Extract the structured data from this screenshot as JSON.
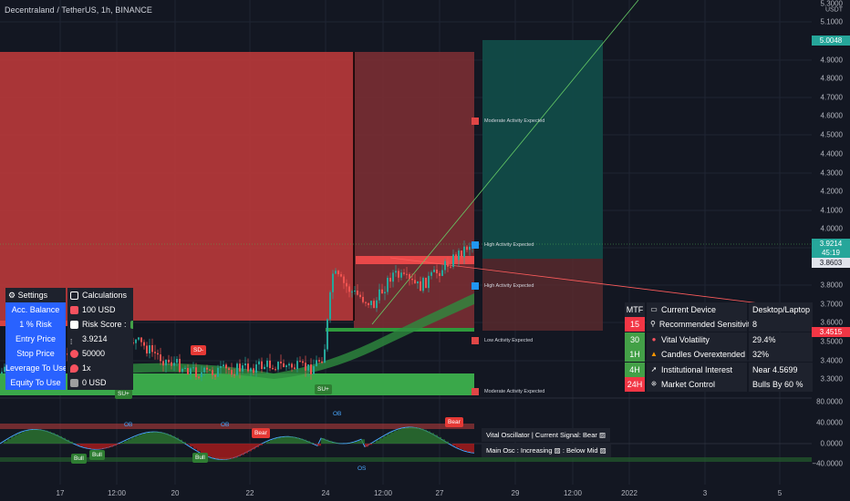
{
  "header": {
    "symbol": "Decentraland / TetherUS, 1h, BINANCE"
  },
  "price_scale": {
    "currency": "USDT",
    "ticks": [
      "5.1000",
      "4.9000",
      "4.8000",
      "4.7000",
      "4.6000",
      "4.5000",
      "4.4000",
      "4.3000",
      "4.2000",
      "4.1000",
      "4.0000",
      "3.9000",
      "3.8000",
      "3.7000",
      "3.6000",
      "3.5000",
      "3.4000",
      "3.3000",
      "3.2000",
      "3.1000"
    ],
    "top_tick": "5.3000",
    "badge_target": "5.0048",
    "badge_last": "3.9214",
    "badge_countdown": "45:19",
    "badge_line": "3.8603",
    "badge_stop": "3.4515",
    "osc_ticks": [
      "80.0000",
      "40.0000",
      "0.0000",
      "−40.0000"
    ]
  },
  "time_axis": [
    "17",
    "12:00",
    "20",
    "22",
    "24",
    "12:00",
    "27",
    "29",
    "12:00",
    "2022",
    "3",
    "5"
  ],
  "zones": [
    {
      "label": "Moderate Activity Expected",
      "color": "#ff9a6a"
    },
    {
      "label": "High Activity Expected",
      "color": "#4aa8ff"
    },
    {
      "label": "High Activity Expected",
      "color": "#4aa8ff"
    },
    {
      "label": "Low Activity Expected",
      "color": "#ff6b6b"
    },
    {
      "label": "Moderate Activity Expected",
      "color": "#ff9a6a"
    }
  ],
  "tags": {
    "sd1": "SD-",
    "su1": "SU+",
    "su2": "SU+",
    "ob1": "OB",
    "ob2": "OB",
    "ob3": "OB",
    "os": "OS",
    "bear1": "Bear",
    "bear2": "Bear",
    "bull1": "Bull",
    "bull2": "Bull",
    "bull3": "Bull"
  },
  "left_table": {
    "settings": "Settings",
    "calculations": "Calculations",
    "rows": [
      {
        "label": "Acc. Balance",
        "value": "100 USD",
        "icon_color": "#f7525f"
      },
      {
        "label": "1 % Risk",
        "value": "Risk Score :",
        "icon_color": "#ffffff"
      },
      {
        "label": "Entry Price",
        "value": "3.9214",
        "icon_color": "#1e222d"
      },
      {
        "label": "Stop Price",
        "value": "50000",
        "icon_color": "#f7525f"
      },
      {
        "label": "Leverage To Use",
        "value": "1x",
        "icon_color": "#f7525f"
      },
      {
        "label": "Equity To Use",
        "value": "0 USD",
        "icon_color": "#9e9e9e"
      }
    ]
  },
  "right_table": {
    "header": {
      "a": "MTF",
      "b": "Current Device",
      "c": "Desktop/Laptop"
    },
    "rows": [
      {
        "tf": "15",
        "tf_color": "#f23645",
        "icon": "⚲",
        "label": "Recommended Sensitivity",
        "value": "8"
      },
      {
        "tf": "30",
        "tf_color": "#43a047",
        "icon": "●",
        "label": "Vital Volatility",
        "value": "29.4%"
      },
      {
        "tf": "1H",
        "tf_color": "#43a047",
        "icon": "▲",
        "label": "Candles Overextended",
        "value": "32%"
      },
      {
        "tf": "4H",
        "tf_color": "#43a047",
        "icon": "➚",
        "label": "Institutional Interest",
        "value": "Near 4.5699"
      },
      {
        "tf": "24H",
        "tf_color": "#f23645",
        "icon": "⁜",
        "label": "Market Control",
        "value": "Bulls By 60 %"
      }
    ]
  },
  "oscillator": {
    "line1": "Vital Oscillator | Current Signal: Bear",
    "line2": "Main Osc : Increasing",
    "line2b": ": Below Mid"
  }
}
